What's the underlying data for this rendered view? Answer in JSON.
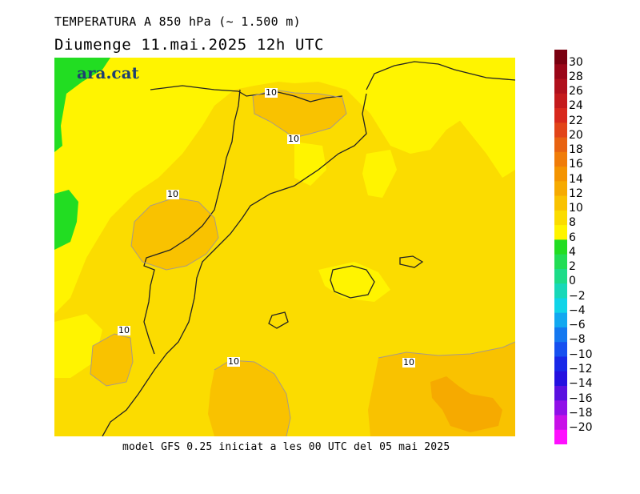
{
  "header": {
    "title": "TEMPERATURA A 850 hPa (~ 1.500 m)",
    "subtitle": "Diumenge  11.mai.2025 12h UTC"
  },
  "footer": {
    "text": "model GFS 0.25 iniciat a les 00 UTC del 05 mai 2025"
  },
  "logo": {
    "text": "ara.cat"
  },
  "contour_labels": [
    "10",
    "10",
    "10",
    "10",
    "10",
    "10"
  ],
  "legend": {
    "labels": [
      "30",
      "28",
      "26",
      "24",
      "22",
      "20",
      "18",
      "16",
      "14",
      "12",
      "10",
      "8",
      "6",
      "4",
      "2",
      "0",
      "−2",
      "−4",
      "−6",
      "−8",
      "−10",
      "−12",
      "−14",
      "−16",
      "−18",
      "−20"
    ],
    "colors": [
      "#7a0010",
      "#9a0618",
      "#b0101c",
      "#c41a1c",
      "#d8281c",
      "#e24418",
      "#e86210",
      "#f07c08",
      "#f49400",
      "#f6aa00",
      "#f9c200",
      "#fbdc00",
      "#fff400",
      "#22dd22",
      "#22dd55",
      "#1ddc88",
      "#18d8b8",
      "#10d4e8",
      "#12a8f0",
      "#1478f0",
      "#1650f0",
      "#1828e8",
      "#2410e0",
      "#5a10e0",
      "#9010e8",
      "#c810e8",
      "#ff10ff"
    ]
  }
}
